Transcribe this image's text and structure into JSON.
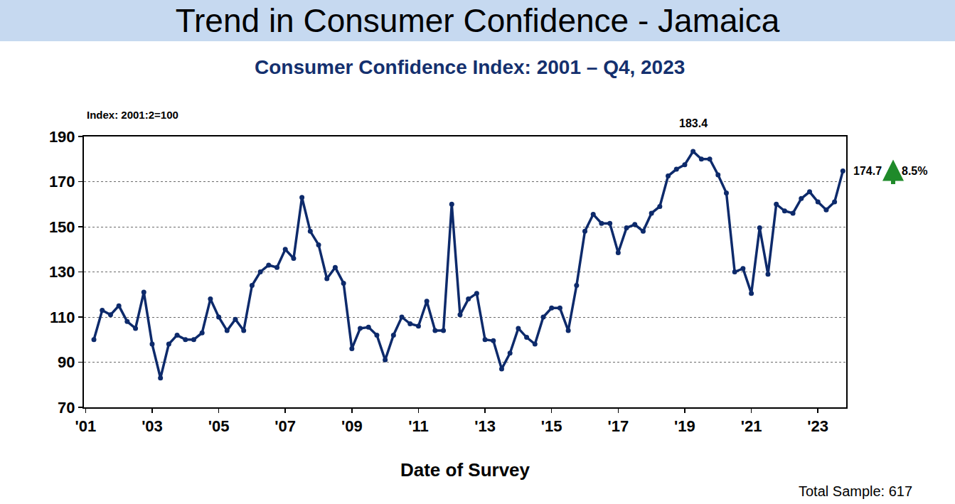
{
  "chart_data": {
    "type": "line",
    "title": "Trend in Consumer Confidence - Jamaica",
    "subtitle": "Consumer Confidence Index: 2001 – Q4, 2023",
    "y_label": "Index: 2001:2=100",
    "x_label": "Date of Survey",
    "note": "Total Sample: 617",
    "color": "#0d2a6b",
    "marker": "circle",
    "line_style": "solid",
    "grid": true,
    "x": [
      2001.25,
      2001.5,
      2001.75,
      2002.0,
      2002.25,
      2002.5,
      2002.75,
      2003.0,
      2003.25,
      2003.5,
      2003.75,
      2004.0,
      2004.25,
      2004.5,
      2004.75,
      2005.0,
      2005.25,
      2005.5,
      2005.75,
      2006.0,
      2006.25,
      2006.5,
      2006.75,
      2007.0,
      2007.25,
      2007.5,
      2007.75,
      2008.0,
      2008.25,
      2008.5,
      2008.75,
      2009.0,
      2009.25,
      2009.5,
      2009.75,
      2010.0,
      2010.25,
      2010.5,
      2010.75,
      2011.0,
      2011.25,
      2011.5,
      2011.75,
      2012.0,
      2012.25,
      2012.5,
      2012.75,
      2013.0,
      2013.25,
      2013.5,
      2013.75,
      2014.0,
      2014.25,
      2014.5,
      2014.75,
      2015.0,
      2015.25,
      2015.5,
      2015.75,
      2016.0,
      2016.25,
      2016.5,
      2016.75,
      2017.0,
      2017.25,
      2017.5,
      2017.75,
      2018.0,
      2018.25,
      2018.5,
      2018.75,
      2019.0,
      2019.25,
      2019.5,
      2019.75,
      2020.0,
      2020.25,
      2020.5,
      2020.75,
      2021.0,
      2021.25,
      2021.5,
      2021.75,
      2022.0,
      2022.25,
      2022.5,
      2022.75,
      2023.0,
      2023.25,
      2023.5,
      2023.75
    ],
    "values": [
      100,
      113,
      111,
      115,
      108,
      105,
      121,
      98,
      83,
      98,
      102,
      100,
      100,
      103,
      118,
      110,
      104,
      109,
      104,
      124,
      130,
      133,
      132,
      140,
      136,
      163,
      148,
      142,
      127,
      132,
      125,
      96,
      105,
      105.5,
      102,
      91,
      102,
      110,
      107,
      106,
      117,
      104,
      104,
      160,
      111,
      118,
      120.5,
      100,
      99.5,
      87,
      94,
      105,
      101,
      98,
      110,
      114,
      114,
      104,
      124,
      148,
      155.5,
      151.5,
      151.5,
      138.5,
      149.5,
      151,
      148,
      156,
      159,
      172.5,
      175.5,
      177.5,
      183.4,
      180,
      180,
      173,
      165,
      130,
      131.5,
      120.5,
      149.5,
      129,
      160,
      157,
      156,
      162.5,
      165.5,
      161,
      157.5,
      161,
      174.7
    ],
    "xlim": [
      2000.95,
      2023.85
    ],
    "xticks": [
      {
        "value": 2001,
        "label": "'01"
      },
      {
        "value": 2003,
        "label": "'03"
      },
      {
        "value": 2005,
        "label": "'05"
      },
      {
        "value": 2007,
        "label": "'07"
      },
      {
        "value": 2009,
        "label": "'09"
      },
      {
        "value": 2011,
        "label": "'11"
      },
      {
        "value": 2013,
        "label": "'13"
      },
      {
        "value": 2015,
        "label": "'15"
      },
      {
        "value": 2017,
        "label": "'17"
      },
      {
        "value": 2019,
        "label": "'19"
      },
      {
        "value": 2021,
        "label": "'21"
      },
      {
        "value": 2023,
        "label": "'23"
      }
    ],
    "ylim": [
      70,
      190
    ],
    "yticks": [
      70,
      90,
      110,
      130,
      150,
      170,
      190
    ],
    "annotations": [
      {
        "text": "183.4",
        "x": 2019.25,
        "y": 183.4
      },
      {
        "text": "174.7",
        "x": 2023.75,
        "y": 174.7
      },
      {
        "text": "8.5%",
        "x": 2023.75,
        "y": 174.7
      }
    ]
  }
}
